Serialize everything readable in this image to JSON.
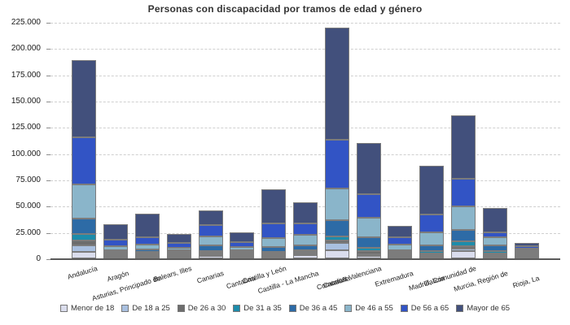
{
  "title": "Personas con discapacidad por tramos de edad y género",
  "colors": {
    "background": "#ffffff",
    "grid": "#cfcfcf",
    "zero_axis": "#5a5a5a",
    "segment_border": "#7c7c7c",
    "text": "#333333"
  },
  "chart_data": {
    "type": "bar",
    "stacked": true,
    "title": "Personas con discapacidad por tramos de edad y género",
    "xlabel": "",
    "ylabel": "",
    "ylim": [
      0,
      225000
    ],
    "ytick_step": 25000,
    "ytick_labels": [
      "0",
      "25.000",
      "50.000",
      "75.000",
      "100.000",
      "125.000",
      "150.000",
      "175.000",
      "200.000",
      "225.000"
    ],
    "grid": "horizontal-dashed",
    "legend_position": "bottom",
    "categories": [
      "Andalucía",
      "Aragón",
      "Asturias, Principado de",
      "Balears, Illes",
      "Canarias",
      "Cantabria",
      "Castilla y León",
      "Castilla - La Mancha",
      "Cataluña",
      "Comunitat Valenciana",
      "Extremadura",
      "Galicia",
      "Madrid, Comunidad de",
      "Murcia, Región de",
      "Rioja, La"
    ],
    "series": [
      {
        "name": "Menor de 18",
        "color": "#dadded",
        "values": [
          6200,
          900,
          900,
          800,
          2100,
          400,
          1100,
          3400,
          8000,
          2600,
          400,
          1300,
          6700,
          1900,
          200
        ]
      },
      {
        "name": "De 18 a 25",
        "color": "#a9c0e0",
        "values": [
          6000,
          900,
          900,
          700,
          800,
          400,
          1200,
          1200,
          6500,
          1500,
          300,
          1300,
          2600,
          1500,
          200
        ]
      },
      {
        "name": "De 26 a 30",
        "color": "#6d6d6d",
        "values": [
          4600,
          1100,
          1300,
          800,
          1000,
          500,
          1900,
          1400,
          2500,
          2600,
          500,
          1500,
          2600,
          1300,
          250
        ]
      },
      {
        "name": "De 31 a 35",
        "color": "#1d8cab",
        "values": [
          6200,
          1100,
          1300,
          900,
          1500,
          700,
          1200,
          1500,
          4000,
          3100,
          500,
          2100,
          4400,
          2100,
          300
        ]
      },
      {
        "name": "De 36 a 45",
        "color": "#2d6ba6",
        "values": [
          14700,
          1400,
          2500,
          1700,
          5700,
          1500,
          4600,
          4400,
          15500,
          9900,
          900,
          5700,
          11100,
          5200,
          500
        ]
      },
      {
        "name": "De 46 a 55",
        "color": "#8ab5ca",
        "values": [
          32500,
          3900,
          4100,
          2400,
          8300,
          3000,
          8300,
          10300,
          29700,
          19300,
          5700,
          12100,
          21900,
          7700,
          650
        ]
      },
      {
        "name": "De 56 a 65",
        "color": "#3254c5",
        "values": [
          44900,
          6500,
          7000,
          4100,
          11100,
          4800,
          13700,
          10800,
          46900,
          21900,
          6400,
          17600,
          26300,
          4900,
          2100
        ]
      },
      {
        "name": "Mayor de 65",
        "color": "#42507c",
        "values": [
          73500,
          14200,
          22800,
          8600,
          13600,
          9100,
          32800,
          19600,
          106600,
          49000,
          10800,
          45900,
          60200,
          23200,
          3100
        ]
      }
    ]
  }
}
